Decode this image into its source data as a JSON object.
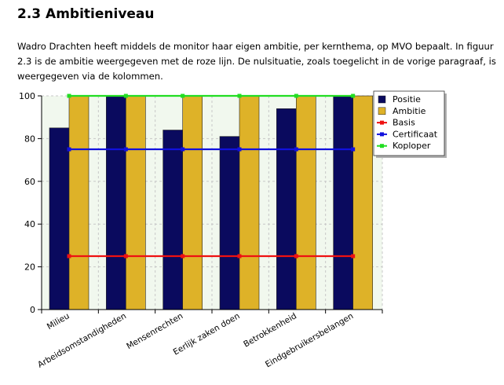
{
  "page": {
    "heading": "2.3 Ambitieniveau",
    "intro": "Wadro Drachten heeft middels de monitor haar eigen ambitie, per kernthema, op MVO bepaalt. In figuur 2.3 is de ambitie weergegeven met de roze lijn. De nulsituatie, zoals toegelicht in de vorige paragraaf, is weergegeven via de kolommen."
  },
  "chart_data": {
    "type": "bar",
    "categories": [
      "Milieu",
      "Arbeidsomstandigheden",
      "Mensenrechten",
      "Eerlijk zaken doen",
      "Betrokkenheid",
      "Eindgebruikersbelangen"
    ],
    "ylim": [
      0,
      100
    ],
    "yticks": [
      0,
      20,
      40,
      60,
      80,
      100
    ],
    "grid": true,
    "legend_position": "top-right",
    "series": [
      {
        "name": "Positie",
        "kind": "bar",
        "color": "#0a0a5e",
        "values": [
          85,
          100,
          84,
          81,
          94,
          100
        ]
      },
      {
        "name": "Ambitie",
        "kind": "bar",
        "color": "#deb228",
        "values": [
          100,
          100,
          100,
          100,
          100,
          100
        ]
      },
      {
        "name": "Basis",
        "kind": "line",
        "color": "#ee1111",
        "values": [
          25,
          25,
          25,
          25,
          25,
          25
        ]
      },
      {
        "name": "Certificaat",
        "kind": "line",
        "color": "#1111dd",
        "values": [
          75,
          75,
          75,
          75,
          75,
          75
        ]
      },
      {
        "name": "Koploper",
        "kind": "line",
        "color": "#22dd22",
        "values": [
          100,
          100,
          100,
          100,
          100,
          100
        ]
      }
    ]
  }
}
